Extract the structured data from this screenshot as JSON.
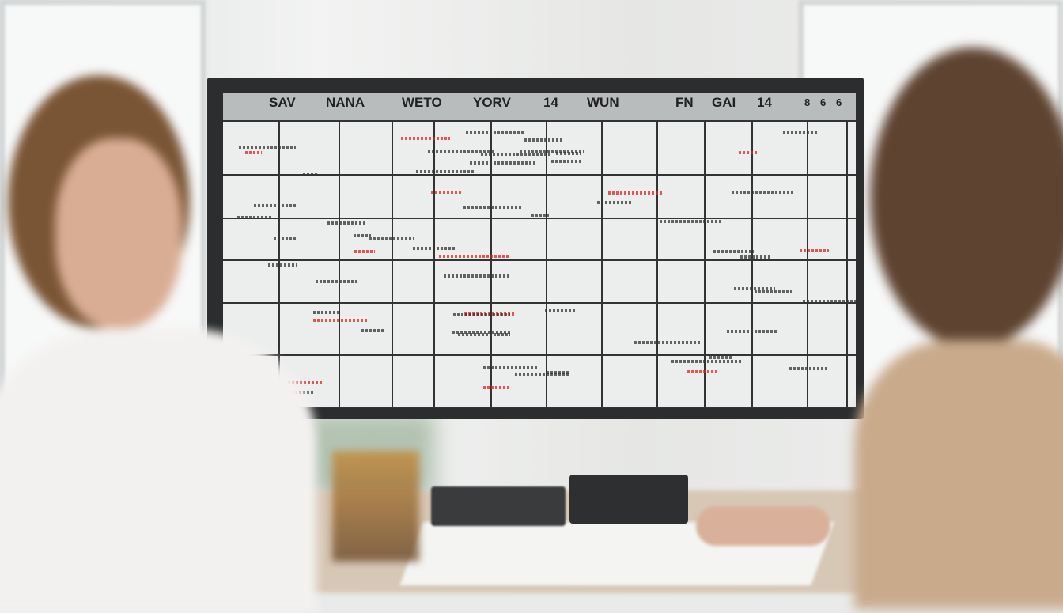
{
  "scene": "office-calendar-review",
  "monitor": {
    "header_words": [
      "SAV",
      "NANA",
      "WETO",
      "YORV",
      "14",
      "WUN",
      "FN",
      "GAI",
      "14",
      "8",
      "6",
      "6"
    ]
  },
  "colors": {
    "screen": "#eceeee",
    "bezel": "#2b2d2f",
    "header": "#b9bcbd",
    "ink": "#333333",
    "accent": "#d22222"
  }
}
